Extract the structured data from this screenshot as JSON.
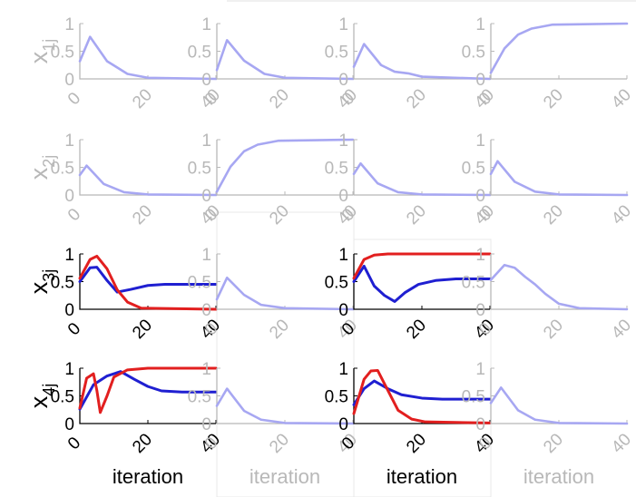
{
  "colors": {
    "active_axis": "#000000",
    "inactive_axis": "#b8b8b8",
    "inactive_series": "#a7a7f2",
    "blue_series": "#1f1fd1",
    "red_series": "#e21f1f",
    "panel_border": "#e8e8e8"
  },
  "row_labels": [
    {
      "main": "x",
      "sub": "1j",
      "active": false
    },
    {
      "main": "x",
      "sub": "2j",
      "active": false
    },
    {
      "main": "x",
      "sub": "3j",
      "active": true
    },
    {
      "main": "x",
      "sub": "4j",
      "active": true
    }
  ],
  "bottom_labels": [
    {
      "text": "iteration",
      "active": true
    },
    {
      "text": "iteration",
      "active": false
    },
    {
      "text": "iteration",
      "active": true
    },
    {
      "text": "iteration",
      "active": false
    }
  ],
  "chart_data": [
    {
      "type": "line",
      "active": false,
      "xlim": [
        0,
        40
      ],
      "ylim": [
        0,
        1
      ],
      "xticks": [
        0,
        20,
        40
      ],
      "yticks": [
        0,
        0.5,
        1
      ],
      "series": [
        {
          "color": "#a7a7f2",
          "values": [
            [
              0,
              0.32
            ],
            [
              3,
              0.76
            ],
            [
              8,
              0.32
            ],
            [
              14,
              0.09
            ],
            [
              20,
              0.02
            ],
            [
              40,
              0
            ]
          ]
        }
      ]
    },
    {
      "type": "line",
      "active": false,
      "xlim": [
        0,
        40
      ],
      "ylim": [
        0,
        1
      ],
      "xticks": [
        0,
        20,
        40
      ],
      "yticks": [
        0,
        0.5,
        1
      ],
      "series": [
        {
          "color": "#a7a7f2",
          "values": [
            [
              0,
              0.16
            ],
            [
              3,
              0.7
            ],
            [
              8,
              0.33
            ],
            [
              14,
              0.09
            ],
            [
              20,
              0.02
            ],
            [
              40,
              0
            ]
          ]
        }
      ]
    },
    {
      "type": "line",
      "active": false,
      "xlim": [
        0,
        40
      ],
      "ylim": [
        0,
        1
      ],
      "xticks": [
        0,
        20,
        40
      ],
      "yticks": [
        0,
        0.5,
        1
      ],
      "series": [
        {
          "color": "#a7a7f2",
          "values": [
            [
              0,
              0.22
            ],
            [
              3,
              0.63
            ],
            [
              8,
              0.25
            ],
            [
              12,
              0.13
            ],
            [
              16,
              0.1
            ],
            [
              20,
              0.04
            ],
            [
              40,
              0
            ]
          ]
        }
      ]
    },
    {
      "type": "line",
      "active": false,
      "xlim": [
        0,
        40
      ],
      "ylim": [
        0,
        1
      ],
      "xticks": [
        0,
        20,
        40
      ],
      "yticks": [
        0,
        0.5,
        1
      ],
      "series": [
        {
          "color": "#a7a7f2",
          "values": [
            [
              0,
              0.11
            ],
            [
              4,
              0.55
            ],
            [
              8,
              0.8
            ],
            [
              12,
              0.91
            ],
            [
              18,
              0.98
            ],
            [
              40,
              1
            ]
          ]
        }
      ]
    },
    {
      "type": "line",
      "active": false,
      "xlim": [
        0,
        40
      ],
      "ylim": [
        0,
        1
      ],
      "xticks": [
        0,
        20,
        40
      ],
      "yticks": [
        0,
        0.5,
        1
      ],
      "series": [
        {
          "color": "#a7a7f2",
          "values": [
            [
              0,
              0.36
            ],
            [
              2,
              0.53
            ],
            [
              7,
              0.2
            ],
            [
              13,
              0.05
            ],
            [
              20,
              0.01
            ],
            [
              40,
              0
            ]
          ]
        }
      ]
    },
    {
      "type": "line",
      "active": false,
      "xlim": [
        0,
        40
      ],
      "ylim": [
        0,
        1
      ],
      "xticks": [
        0,
        20,
        40
      ],
      "yticks": [
        0,
        0.5,
        1
      ],
      "series": [
        {
          "color": "#a7a7f2",
          "values": [
            [
              0,
              0.06
            ],
            [
              4,
              0.51
            ],
            [
              8,
              0.79
            ],
            [
              12,
              0.91
            ],
            [
              18,
              0.98
            ],
            [
              40,
              1
            ]
          ]
        }
      ]
    },
    {
      "type": "line",
      "active": false,
      "xlim": [
        0,
        40
      ],
      "ylim": [
        0,
        1
      ],
      "xticks": [
        0,
        20,
        40
      ],
      "yticks": [
        0,
        0.5,
        1
      ],
      "series": [
        {
          "color": "#a7a7f2",
          "values": [
            [
              0,
              0.38
            ],
            [
              2,
              0.57
            ],
            [
              7,
              0.21
            ],
            [
              13,
              0.05
            ],
            [
              20,
              0.01
            ],
            [
              40,
              0
            ]
          ]
        }
      ]
    },
    {
      "type": "line",
      "active": false,
      "xlim": [
        0,
        40
      ],
      "ylim": [
        0,
        1
      ],
      "xticks": [
        0,
        20,
        40
      ],
      "yticks": [
        0,
        0.5,
        1
      ],
      "series": [
        {
          "color": "#a7a7f2",
          "values": [
            [
              0,
              0.38
            ],
            [
              2,
              0.61
            ],
            [
              7,
              0.24
            ],
            [
              13,
              0.06
            ],
            [
              20,
              0.01
            ],
            [
              40,
              0
            ]
          ]
        }
      ]
    },
    {
      "type": "line",
      "active": true,
      "xlim": [
        0,
        40
      ],
      "ylim": [
        0,
        1
      ],
      "xticks": [
        0,
        20,
        40
      ],
      "yticks": [
        0,
        0.5,
        1
      ],
      "series": [
        {
          "color": "#1f1fd1",
          "values": [
            [
              0,
              0.5
            ],
            [
              3,
              0.75
            ],
            [
              5,
              0.76
            ],
            [
              8,
              0.52
            ],
            [
              11,
              0.31
            ],
            [
              15,
              0.36
            ],
            [
              20,
              0.43
            ],
            [
              25,
              0.45
            ],
            [
              40,
              0.45
            ]
          ]
        },
        {
          "color": "#e21f1f",
          "values": [
            [
              0,
              0.56
            ],
            [
              3,
              0.9
            ],
            [
              5,
              0.96
            ],
            [
              8,
              0.73
            ],
            [
              11,
              0.35
            ],
            [
              14,
              0.13
            ],
            [
              18,
              0.02
            ],
            [
              40,
              0
            ]
          ]
        }
      ]
    },
    {
      "type": "line",
      "active": false,
      "xlim": [
        0,
        40
      ],
      "ylim": [
        0,
        1
      ],
      "xticks": [
        0,
        20,
        40
      ],
      "yticks": [
        0,
        0.5,
        1
      ],
      "series": [
        {
          "color": "#a7a7f2",
          "values": [
            [
              0,
              0.18
            ],
            [
              3,
              0.57
            ],
            [
              8,
              0.26
            ],
            [
              13,
              0.08
            ],
            [
              20,
              0.02
            ],
            [
              40,
              0
            ]
          ]
        }
      ]
    },
    {
      "type": "line",
      "active": true,
      "xlim": [
        0,
        40
      ],
      "ylim": [
        0,
        1
      ],
      "xticks": [
        0,
        20,
        40
      ],
      "yticks": [
        0,
        0.5,
        1
      ],
      "series": [
        {
          "color": "#1f1fd1",
          "values": [
            [
              0,
              0.5
            ],
            [
              3,
              0.78
            ],
            [
              6,
              0.42
            ],
            [
              9,
              0.25
            ],
            [
              12,
              0.14
            ],
            [
              15,
              0.3
            ],
            [
              19,
              0.45
            ],
            [
              24,
              0.52
            ],
            [
              30,
              0.55
            ],
            [
              40,
              0.55
            ]
          ]
        },
        {
          "color": "#e21f1f",
          "values": [
            [
              0,
              0.56
            ],
            [
              3,
              0.9
            ],
            [
              6,
              0.98
            ],
            [
              10,
              1
            ],
            [
              40,
              1
            ]
          ]
        }
      ]
    },
    {
      "type": "line",
      "active": false,
      "xlim": [
        0,
        40
      ],
      "ylim": [
        0,
        1
      ],
      "xticks": [
        0,
        20,
        40
      ],
      "yticks": [
        0,
        0.5,
        1
      ],
      "series": [
        {
          "color": "#a7a7f2",
          "values": [
            [
              0,
              0.53
            ],
            [
              4,
              0.8
            ],
            [
              7,
              0.75
            ],
            [
              10,
              0.59
            ],
            [
              13,
              0.45
            ],
            [
              16,
              0.28
            ],
            [
              20,
              0.1
            ],
            [
              26,
              0.02
            ],
            [
              40,
              0
            ]
          ]
        }
      ]
    },
    {
      "type": "line",
      "active": true,
      "xlim": [
        0,
        40
      ],
      "ylim": [
        0,
        1
      ],
      "xticks": [
        0,
        20,
        40
      ],
      "yticks": [
        0,
        0.5,
        1
      ],
      "series": [
        {
          "color": "#1f1fd1",
          "values": [
            [
              0,
              0.26
            ],
            [
              4,
              0.7
            ],
            [
              8,
              0.86
            ],
            [
              12,
              0.94
            ],
            [
              16,
              0.8
            ],
            [
              20,
              0.67
            ],
            [
              24,
              0.59
            ],
            [
              30,
              0.57
            ],
            [
              40,
              0.57
            ]
          ]
        },
        {
          "color": "#e21f1f",
          "values": [
            [
              0,
              0.28
            ],
            [
              2,
              0.82
            ],
            [
              4,
              0.9
            ],
            [
              5,
              0.6
            ],
            [
              6,
              0.2
            ],
            [
              8,
              0.5
            ],
            [
              10,
              0.84
            ],
            [
              14,
              0.97
            ],
            [
              20,
              1
            ],
            [
              40,
              1
            ]
          ]
        }
      ]
    },
    {
      "type": "line",
      "active": false,
      "xlim": [
        0,
        40
      ],
      "ylim": [
        0,
        1
      ],
      "xticks": [
        0,
        20,
        40
      ],
      "yticks": [
        0,
        0.5,
        1
      ],
      "series": [
        {
          "color": "#a7a7f2",
          "values": [
            [
              0,
              0.32
            ],
            [
              3,
              0.63
            ],
            [
              8,
              0.23
            ],
            [
              13,
              0.07
            ],
            [
              20,
              0.01
            ],
            [
              40,
              0
            ]
          ]
        }
      ]
    },
    {
      "type": "line",
      "active": true,
      "xlim": [
        0,
        40
      ],
      "ylim": [
        0,
        1
      ],
      "xticks": [
        0,
        20,
        40
      ],
      "yticks": [
        0,
        0.5,
        1
      ],
      "series": [
        {
          "color": "#1f1fd1",
          "values": [
            [
              0,
              0.34
            ],
            [
              3,
              0.63
            ],
            [
              6,
              0.77
            ],
            [
              10,
              0.63
            ],
            [
              14,
              0.52
            ],
            [
              20,
              0.46
            ],
            [
              26,
              0.44
            ],
            [
              40,
              0.44
            ]
          ]
        },
        {
          "color": "#e21f1f",
          "values": [
            [
              0,
              0.18
            ],
            [
              3,
              0.8
            ],
            [
              5,
              0.95
            ],
            [
              7,
              0.96
            ],
            [
              10,
              0.6
            ],
            [
              13,
              0.24
            ],
            [
              17,
              0.08
            ],
            [
              21,
              0.03
            ],
            [
              40,
              0.01
            ]
          ]
        }
      ]
    },
    {
      "type": "line",
      "active": false,
      "xlim": [
        0,
        40
      ],
      "ylim": [
        0,
        1
      ],
      "xticks": [
        0,
        20,
        40
      ],
      "yticks": [
        0,
        0.5,
        1
      ],
      "series": [
        {
          "color": "#a7a7f2",
          "values": [
            [
              0,
              0.37
            ],
            [
              3,
              0.65
            ],
            [
              8,
              0.24
            ],
            [
              13,
              0.07
            ],
            [
              20,
              0.01
            ],
            [
              40,
              0
            ]
          ]
        }
      ]
    }
  ]
}
